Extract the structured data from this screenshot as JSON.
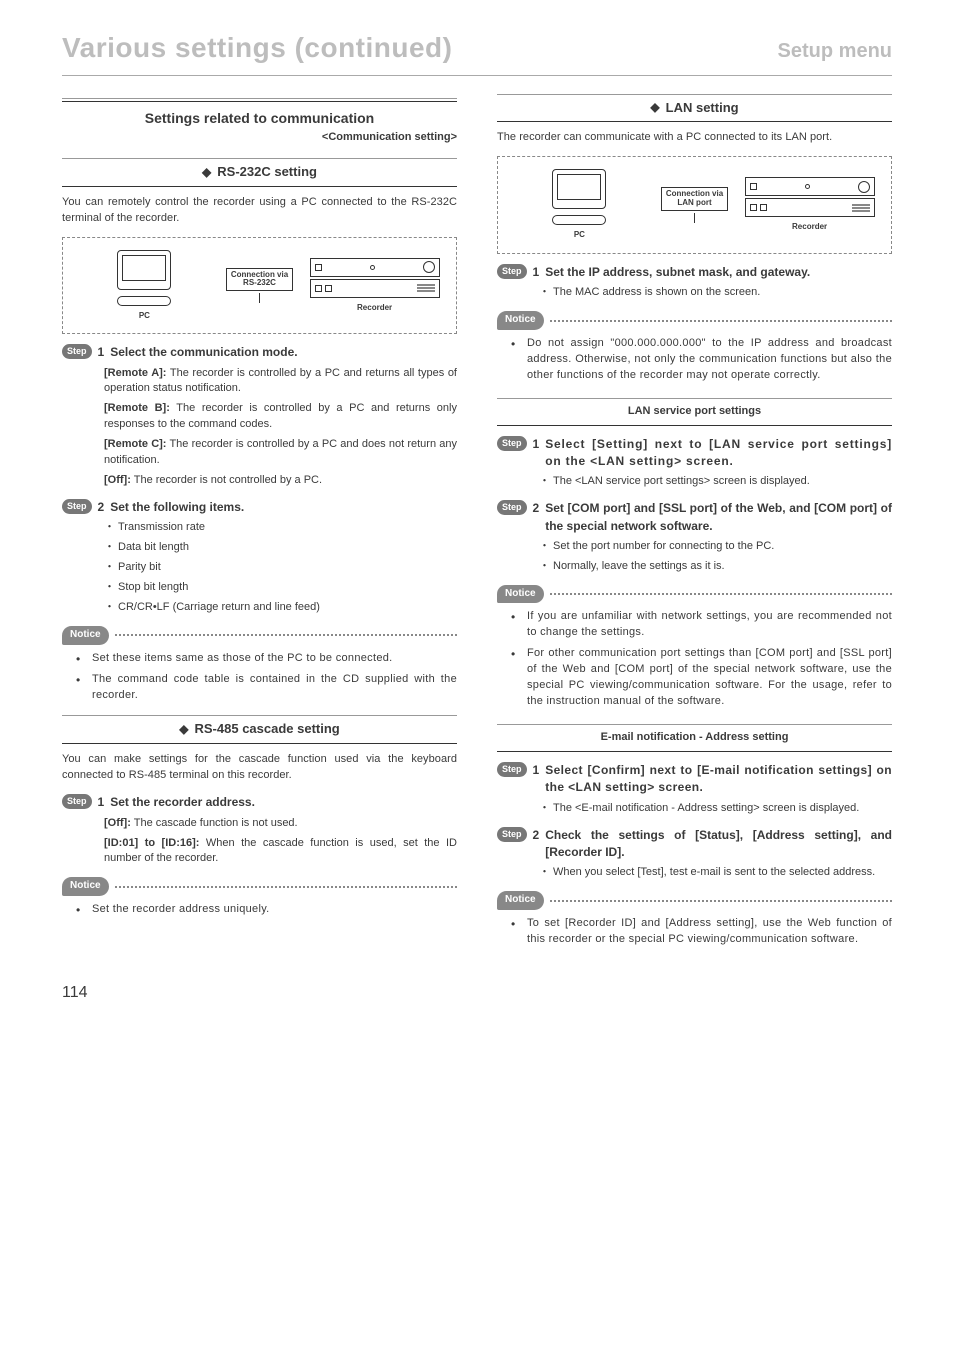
{
  "page": {
    "title": "Various settings (continued)",
    "subtitle": "Setup menu",
    "number": "114"
  },
  "left": {
    "section_heading": "Settings related to communication",
    "section_sub": "<Communication setting>",
    "rs232c": {
      "heading": "RS-232C setting",
      "intro": "You can remotely control the recorder using a PC connected to the RS-232C terminal of the recorder.",
      "diagram": {
        "pc_label": "PC",
        "conn_line1": "Connection via",
        "conn_line2": "RS-232C",
        "rec_label": "Recorder"
      },
      "step1": {
        "badge": "Step",
        "num": "1",
        "title": "Select the communication mode.",
        "remote_a_k": "[Remote A]:",
        "remote_a_v": " The recorder is controlled by a PC and returns all types of operation status notification.",
        "remote_b_k": "[Remote B]:",
        "remote_b_v": " The recorder is controlled by a PC and returns only responses to the command codes.",
        "remote_c_k": "[Remote C]:",
        "remote_c_v": " The recorder is controlled by a PC and does not return any notification.",
        "off_k": "[Off]:",
        "off_v": " The recorder is not controlled by a PC."
      },
      "step2": {
        "badge": "Step",
        "num": "2",
        "title": "Set the following items.",
        "items": {
          "i1": "Transmission rate",
          "i2": "Data bit length",
          "i3": "Parity bit",
          "i4": "Stop bit length",
          "i5": "CR/CR•LF (Carriage return and line feed)"
        }
      },
      "notice_label": "Notice",
      "notice": {
        "n1": "Set these items same as those of the PC to be connected.",
        "n2": "The command code table is contained in the CD supplied with the recorder."
      }
    },
    "rs485": {
      "heading": "RS-485 cascade setting",
      "intro": "You can make settings for the cascade function used via the keyboard connected to RS-485 terminal on this recorder.",
      "step1": {
        "badge": "Step",
        "num": "1",
        "title": "Set the recorder address.",
        "off_k": "[Off]:",
        "off_v": " The cascade function is not used.",
        "id_k": "[ID:01] to [ID:16]:",
        "id_v": " When the cascade function is used, set the ID number of the recorder."
      },
      "notice_label": "Notice",
      "notice": {
        "n1": "Set the recorder address uniquely."
      }
    }
  },
  "right": {
    "lan": {
      "heading": "LAN setting",
      "intro": "The recorder can communicate with a PC connected to its LAN port.",
      "diagram": {
        "pc_label": "PC",
        "conn_line1": "Connection via",
        "conn_line2": "LAN port",
        "rec_label": "Recorder"
      },
      "step1": {
        "badge": "Step",
        "num": "1",
        "title": "Set the IP address, subnet mask, and gateway.",
        "b1": "The MAC address is shown on the screen."
      },
      "notice1_label": "Notice",
      "notice1": {
        "n1": "Do not assign \"000.000.000.000\" to the IP address and broadcast address. Otherwise, not only the communication functions but also the other functions of the recorder may not operate correctly."
      }
    },
    "lan_service": {
      "heading": "LAN service port settings",
      "step1": {
        "badge": "Step",
        "num": "1",
        "title": "Select [Setting] next to [LAN service port settings] on the <LAN setting> screen.",
        "b1": "The <LAN service port settings> screen is displayed."
      },
      "step2": {
        "badge": "Step",
        "num": "2",
        "title": "Set [COM port] and [SSL port] of the Web, and [COM port] of the special network software.",
        "b1": "Set the port number for connecting to the PC.",
        "b2": "Normally, leave the settings as it is."
      },
      "notice_label": "Notice",
      "notice": {
        "n1": "If you are unfamiliar with network settings, you are recommended not to change the settings.",
        "n2": "For other communication port settings than [COM port] and [SSL port] of the Web and [COM port] of the special network software, use the special PC viewing/communication software. For the usage, refer to the instruction manual of the software."
      }
    },
    "email": {
      "heading": "E-mail notification - Address setting",
      "step1": {
        "badge": "Step",
        "num": "1",
        "title": "Select [Confirm] next to [E-mail notification settings] on the <LAN setting> screen.",
        "b1": "The <E-mail notification - Address setting> screen is displayed."
      },
      "step2": {
        "badge": "Step",
        "num": "2",
        "title": "Check the settings of [Status], [Address setting], and [Recorder ID].",
        "b1": "When you select [Test], test e-mail is sent to the selected address."
      },
      "notice_label": "Notice",
      "notice": {
        "n1": "To set [Recorder ID] and [Address setting], use the Web function of this recorder or the special PC viewing/communication software."
      }
    }
  }
}
